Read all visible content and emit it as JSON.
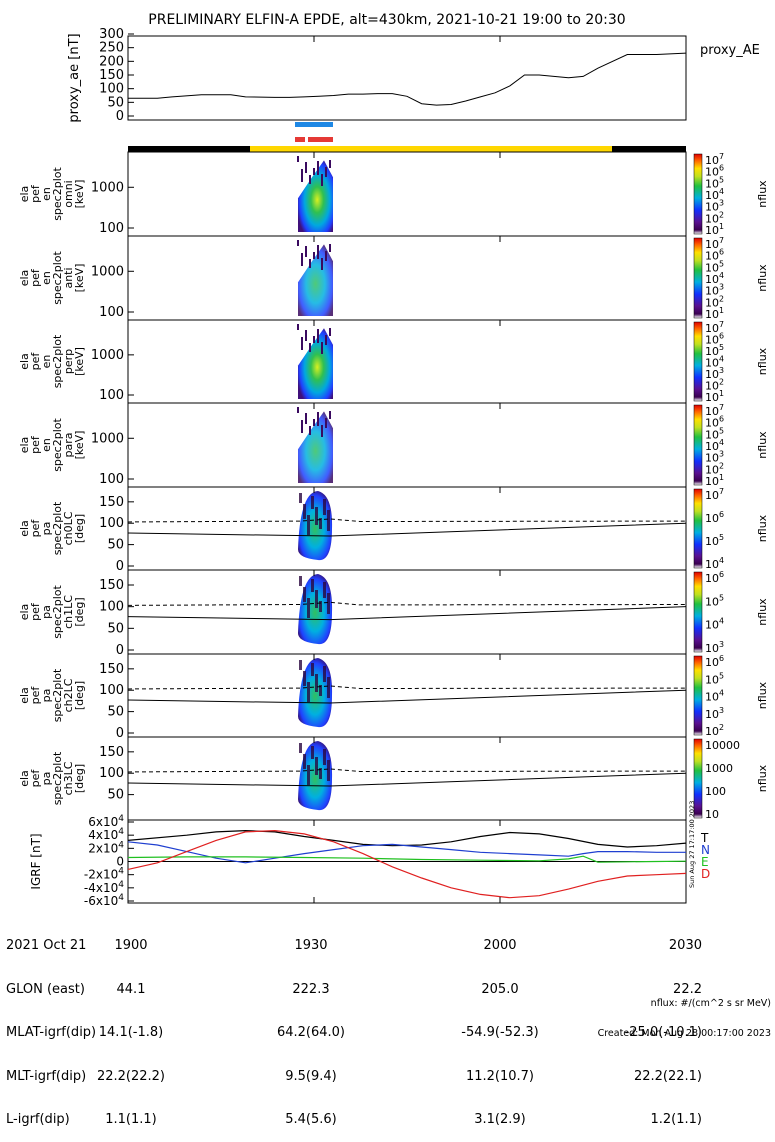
{
  "title": "PRELIMINARY ELFIN-A EPDE, alt=430km, 2021-10-21 19:00 to 20:30",
  "colors": {
    "blue_bar": "#1e88e5",
    "red_bar": "#e53935",
    "orbit_yellow": "#ffd700",
    "orbit_black": "#000000",
    "igrf_T": "#000000",
    "igrf_N": "#1f3fd0",
    "igrf_E": "#20c020",
    "igrf_D": "#e02020"
  },
  "chart_data": [
    {
      "type": "line",
      "panel": "proxy_ae",
      "ylabel": "proxy_ae [nT]",
      "legend": "proxy_AE",
      "ylim": [
        0,
        300
      ],
      "yticks": [
        "300",
        "250",
        "200",
        "150",
        "100",
        "50",
        "0"
      ],
      "x_minutes": [
        0,
        10,
        15,
        25,
        35,
        40,
        50,
        55,
        60,
        65,
        70,
        75,
        78,
        80,
        85,
        90,
        95,
        100,
        105,
        110,
        115,
        120,
        125,
        130,
        135,
        140,
        145,
        150,
        155,
        160,
        170,
        180,
        190
      ],
      "y": [
        65,
        65,
        70,
        78,
        78,
        70,
        68,
        68,
        70,
        72,
        75,
        80,
        80,
        80,
        82,
        82,
        72,
        45,
        40,
        42,
        55,
        70,
        85,
        110,
        150,
        150,
        145,
        140,
        145,
        175,
        225,
        225,
        230
      ]
    },
    {
      "type": "heatmap",
      "panel": "omni",
      "ylabel": [
        "ela",
        "pef",
        "en",
        "spec2plot",
        "omni"
      ],
      "yunit": "[keV]",
      "yticks": [
        "1000",
        "100"
      ],
      "cbar": "nflux",
      "cbar_ticks": [
        "10^7",
        "10^6",
        "10^5",
        "10^4",
        "10^3",
        "10^2",
        "10^1"
      ]
    },
    {
      "type": "heatmap",
      "panel": "anti",
      "ylabel": [
        "ela",
        "pef",
        "en",
        "spec2plot",
        "anti"
      ],
      "yunit": "[keV]",
      "yticks": [
        "1000",
        "100"
      ],
      "cbar": "nflux",
      "cbar_ticks": [
        "10^7",
        "10^6",
        "10^5",
        "10^4",
        "10^3",
        "10^2",
        "10^1"
      ]
    },
    {
      "type": "heatmap",
      "panel": "perp",
      "ylabel": [
        "ela",
        "pef",
        "en",
        "spec2plot",
        "perp"
      ],
      "yunit": "[keV]",
      "yticks": [
        "1000",
        "100"
      ],
      "cbar": "nflux",
      "cbar_ticks": [
        "10^7",
        "10^6",
        "10^5",
        "10^4",
        "10^3",
        "10^2",
        "10^1"
      ]
    },
    {
      "type": "heatmap",
      "panel": "para",
      "ylabel": [
        "ela",
        "pef",
        "en",
        "spec2plot",
        "para"
      ],
      "yunit": "[keV]",
      "yticks": [
        "1000",
        "100"
      ],
      "cbar": "nflux",
      "cbar_ticks": [
        "10^7",
        "10^6",
        "10^5",
        "10^4",
        "10^3",
        "10^2",
        "10^1"
      ]
    },
    {
      "type": "heatmap",
      "panel": "ch0LC",
      "ylabel": [
        "ela",
        "pef",
        "pa",
        "spec2plot",
        "ch0LC"
      ],
      "yunit": "[deg]",
      "yticks": [
        "150",
        "100",
        "50",
        "0"
      ],
      "cbar": "nflux",
      "cbar_ticks": [
        "10^7",
        "10^6",
        "10^5",
        "10^4"
      ]
    },
    {
      "type": "heatmap",
      "panel": "ch1LC",
      "ylabel": [
        "ela",
        "pef",
        "pa",
        "spec2plot",
        "ch1LC"
      ],
      "yunit": "[deg]",
      "yticks": [
        "150",
        "100",
        "50",
        "0"
      ],
      "cbar": "nflux",
      "cbar_ticks": [
        "10^6",
        "10^5",
        "10^4",
        "10^3"
      ]
    },
    {
      "type": "heatmap",
      "panel": "ch2LC",
      "ylabel": [
        "ela",
        "pef",
        "pa",
        "spec2plot",
        "ch2LC"
      ],
      "yunit": "[deg]",
      "yticks": [
        "150",
        "100",
        "50",
        "0"
      ],
      "cbar": "nflux",
      "cbar_ticks": [
        "10^6",
        "10^5",
        "10^4",
        "10^3",
        "10^2"
      ]
    },
    {
      "type": "heatmap",
      "panel": "ch3LC",
      "ylabel": [
        "ela",
        "pef",
        "pa",
        "spec2plot",
        "ch3LC"
      ],
      "yunit": "[deg]",
      "yticks": [
        "150",
        "100",
        "50"
      ],
      "cbar": "nflux",
      "cbar_ticks": [
        "10000",
        "1000",
        "100",
        "10"
      ]
    },
    {
      "type": "line",
      "panel": "igrf",
      "ylabel": "IGRF [nT]",
      "ylim": [
        -60000,
        60000
      ],
      "yticks": [
        "6x10^4",
        "4x10^4",
        "2x10^4",
        "0",
        "-2x10^4",
        "-4x10^4",
        "-6x10^4"
      ],
      "legend": [
        "T",
        "N",
        "E",
        "D"
      ],
      "series": [
        {
          "name": "T",
          "x_minutes": [
            0,
            20,
            30,
            40,
            50,
            60,
            70,
            80,
            90,
            100,
            110,
            120,
            130,
            140,
            150,
            160,
            170,
            180,
            190
          ],
          "values": [
            32000,
            40000,
            45000,
            47000,
            45000,
            38000,
            32000,
            26000,
            24000,
            25000,
            30000,
            38000,
            44000,
            42000,
            35000,
            26000,
            22000,
            24000,
            28000
          ]
        },
        {
          "name": "N",
          "x_minutes": [
            0,
            10,
            20,
            30,
            40,
            50,
            60,
            70,
            80,
            90,
            100,
            110,
            120,
            130,
            140,
            150,
            155,
            160,
            170,
            180,
            190
          ],
          "values": [
            30000,
            25000,
            15000,
            5000,
            -2000,
            5000,
            12000,
            18000,
            24000,
            26000,
            22000,
            18000,
            14000,
            12000,
            10000,
            8000,
            12000,
            15000,
            15000,
            14000,
            14000
          ]
        },
        {
          "name": "E",
          "x_minutes": [
            0,
            20,
            40,
            60,
            80,
            100,
            120,
            140,
            150,
            155,
            160,
            170,
            180,
            190
          ],
          "values": [
            6000,
            7000,
            7000,
            6000,
            5000,
            3000,
            2000,
            1000,
            4000,
            8000,
            -1000,
            -500,
            0,
            500
          ]
        },
        {
          "name": "D",
          "x_minutes": [
            0,
            10,
            20,
            30,
            40,
            50,
            60,
            70,
            80,
            90,
            100,
            110,
            120,
            130,
            140,
            150,
            160,
            170,
            180,
            190
          ],
          "values": [
            -12000,
            -2000,
            15000,
            32000,
            45000,
            47000,
            42000,
            30000,
            12000,
            -8000,
            -25000,
            -40000,
            -50000,
            -55000,
            -52000,
            -42000,
            -30000,
            -22000,
            -20000,
            -18000
          ]
        }
      ]
    }
  ],
  "xticks": [
    "1900",
    "1930",
    "2000",
    "2030"
  ],
  "footer": {
    "labels": [
      "2021 Oct 21",
      "GLON (east)",
      "MLAT-igrf(dip)",
      "MLT-igrf(dip)",
      "L-igrf(dip)"
    ],
    "col_1900": [
      "1900",
      "44.1",
      "14.1(-1.8)",
      "22.2(22.2)",
      "1.1(1.1)"
    ],
    "col_1930": [
      "1930",
      "222.3",
      "64.2(64.0)",
      "9.5(9.4)",
      "5.4(5.6)"
    ],
    "col_2000": [
      "2000",
      "205.0",
      "-54.9(-52.3)",
      "11.2(10.7)",
      "3.1(2.9)"
    ],
    "col_2030": [
      "2030",
      "22.2",
      "-25.0(-10.1)",
      "22.2(22.1)",
      "1.2(1.1)"
    ],
    "nflux_note": "nflux: #/(cm^2 s sr MeV)",
    "created": "Created: Mon Aug 28 00:17:00 2023",
    "side_stamp": "Sun Aug 27 17:17:00 2023"
  }
}
